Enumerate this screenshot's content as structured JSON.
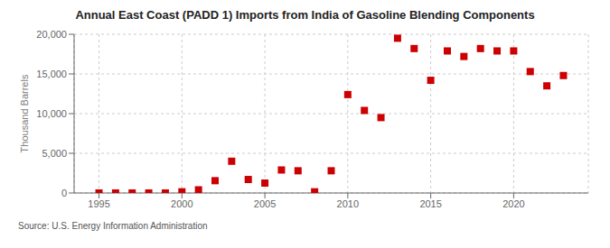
{
  "chart_data": {
    "type": "scatter",
    "title": "Annual East Coast (PADD 1) Imports from India of Gasoline Blending Components",
    "ylabel": "Thousand Barrels",
    "source": "Source: U.S. Energy Information Administration",
    "x": [
      1995,
      1996,
      1997,
      1998,
      1999,
      2000,
      2001,
      2002,
      2003,
      2004,
      2005,
      2006,
      2007,
      2008,
      2009,
      2010,
      2011,
      2012,
      2013,
      2014,
      2015,
      2016,
      2017,
      2018,
      2019,
      2020,
      2021,
      2022,
      2023
    ],
    "values": [
      0,
      0,
      0,
      0,
      0,
      150,
      400,
      1550,
      4000,
      1700,
      1250,
      2900,
      2800,
      150,
      2800,
      12400,
      10400,
      9500,
      19500,
      18200,
      14200,
      17900,
      17200,
      18200,
      17900,
      17900,
      15300,
      13500,
      14800
    ],
    "color": "#cc0000",
    "marker": "square",
    "xlim": [
      1993.5,
      2024.5
    ],
    "ylim": [
      0,
      20000
    ],
    "xticks": [
      1995,
      2000,
      2005,
      2010,
      2015,
      2020
    ],
    "yticks": [
      0,
      {
        "value": 5000,
        "label": "5,000"
      },
      {
        "value": 10000,
        "label": "10,000"
      },
      {
        "value": 15000,
        "label": "15,000"
      },
      {
        "value": 20000,
        "label": "20,000"
      }
    ],
    "grid": true
  }
}
